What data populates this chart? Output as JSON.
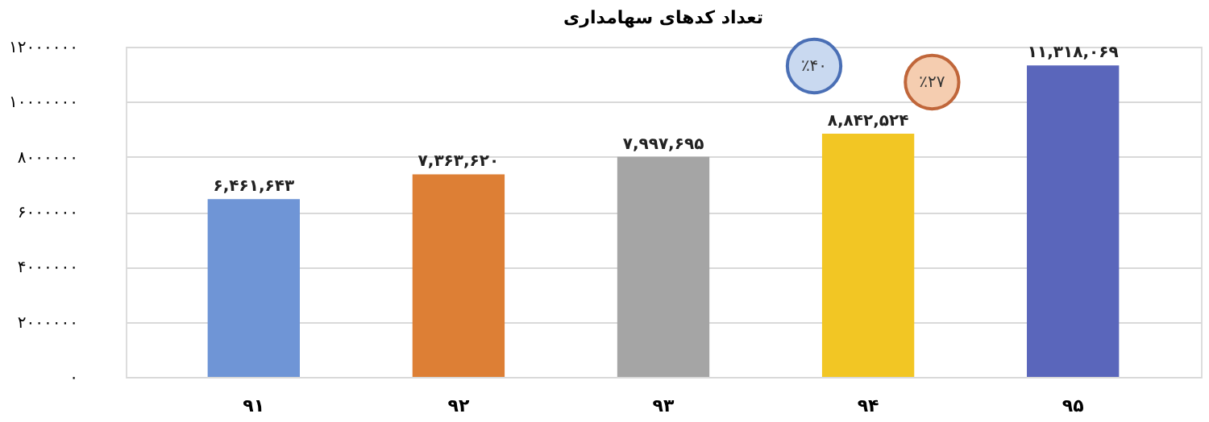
{
  "chart_data": {
    "type": "bar",
    "title": "تعداد کدهای سهامداری",
    "categories": [
      "۹۱",
      "۹۲",
      "۹۳",
      "۹۴",
      "۹۵"
    ],
    "values": [
      6461643,
      7363620,
      7997695,
      8842524,
      11318069
    ],
    "colors": [
      "#6f95d6",
      "#dd7f35",
      "#a5a5a5",
      "#f2c624",
      "#5a66bb"
    ],
    "value_labels": [
      "۶,۴۶۱,۶۴۳",
      "۷,۳۶۳,۶۲۰",
      "۷,۹۹۷,۶۹۵",
      "۸,۸۴۲,۵۲۴",
      "۱۱,۳۱۸,۰۶۹"
    ],
    "ylim": [
      0,
      12000000
    ],
    "yticks": [
      {
        "value": 0,
        "label": "۰"
      },
      {
        "value": 2000000,
        "label": "۲۰۰۰۰۰۰"
      },
      {
        "value": 4000000,
        "label": "۴۰۰۰۰۰۰"
      },
      {
        "value": 6000000,
        "label": "۶۰۰۰۰۰۰"
      },
      {
        "value": 8000000,
        "label": "۸۰۰۰۰۰۰"
      },
      {
        "value": 10000000,
        "label": "۱۰۰۰۰۰۰۰"
      },
      {
        "value": 12000000,
        "label": "۱۲۰۰۰۰۰۰"
      }
    ],
    "grid": "y",
    "annotations": [
      "٪۴۰",
      "٪۲۷"
    ]
  }
}
